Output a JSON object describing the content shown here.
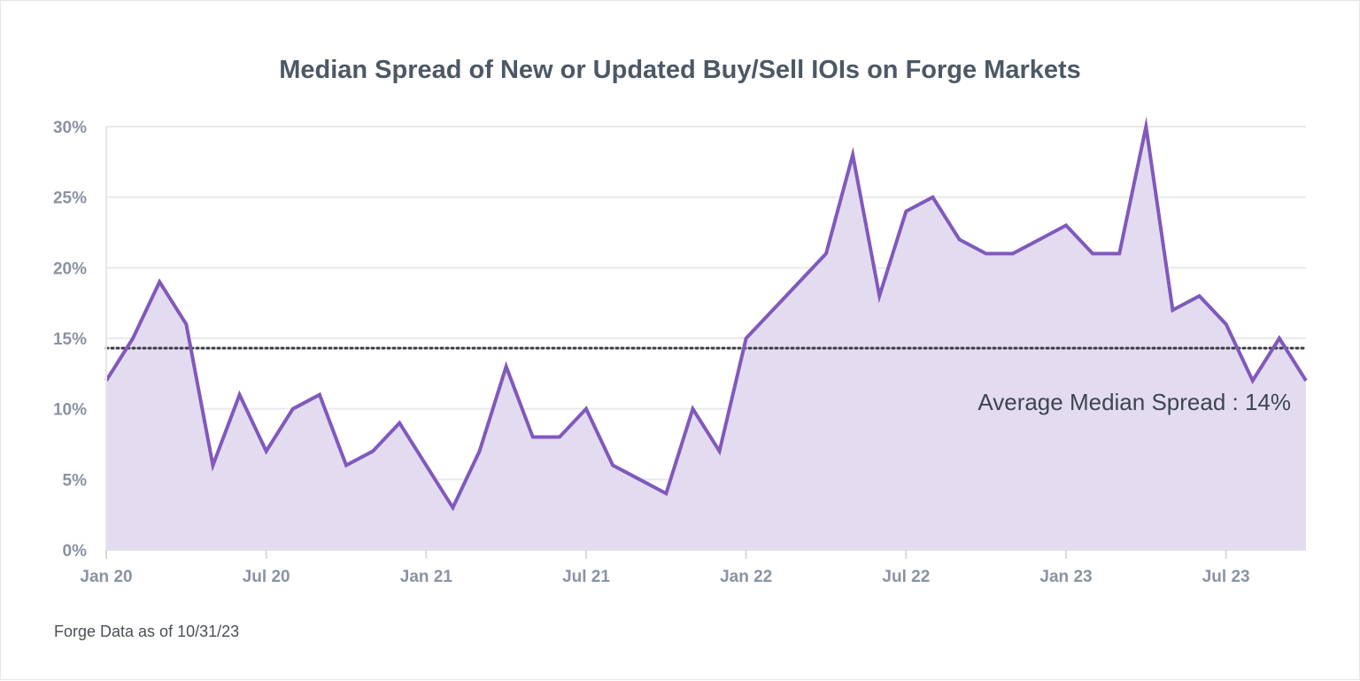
{
  "chart_data": {
    "type": "area",
    "title": "Median Spread of New or Updated Buy/Sell IOIs on Forge Markets",
    "xlabel": "",
    "ylabel": "",
    "x_ticks": [
      "Jan 20",
      "Jul 20",
      "Jan 21",
      "Jul 21",
      "Jan 22",
      "Jul 22",
      "Jan 23",
      "Jul 23"
    ],
    "y_ticks": [
      "0%",
      "5%",
      "10%",
      "15%",
      "20%",
      "25%",
      "30%"
    ],
    "ylim": [
      0,
      30
    ],
    "y_unit": "%",
    "grid": "horizontal",
    "x": [
      "2020-01",
      "2020-02",
      "2020-03",
      "2020-04",
      "2020-05",
      "2020-06",
      "2020-07",
      "2020-08",
      "2020-09",
      "2020-10",
      "2020-11",
      "2020-12",
      "2021-01",
      "2021-02",
      "2021-03",
      "2021-04",
      "2021-05",
      "2021-06",
      "2021-07",
      "2021-08",
      "2021-09",
      "2021-10",
      "2021-11",
      "2021-12",
      "2022-01",
      "2022-02",
      "2022-03",
      "2022-04",
      "2022-05",
      "2022-06",
      "2022-07",
      "2022-08",
      "2022-09",
      "2022-10",
      "2022-11",
      "2022-12",
      "2023-01",
      "2023-02",
      "2023-03",
      "2023-04",
      "2023-05",
      "2023-06",
      "2023-07",
      "2023-08",
      "2023-09",
      "2023-10"
    ],
    "series": [
      {
        "values": [
          12,
          15,
          19,
          16,
          6,
          11,
          7,
          10,
          11,
          6,
          7,
          9,
          6,
          3,
          7,
          13,
          8,
          8,
          10,
          6,
          5,
          4,
          10,
          7,
          15,
          17,
          19,
          21,
          28,
          18,
          24,
          25,
          22,
          21,
          21,
          22,
          23,
          21,
          21,
          30,
          17,
          18,
          16,
          12,
          15,
          12
        ],
        "color": "#8059bd",
        "fill": "#e3dcf0"
      }
    ],
    "reference_line": {
      "value": 14.3,
      "label": "Average Median Spread : 14%",
      "style": "dotted",
      "color": "#3c3c46"
    }
  },
  "footnote": "Forge Data as of 10/31/23"
}
